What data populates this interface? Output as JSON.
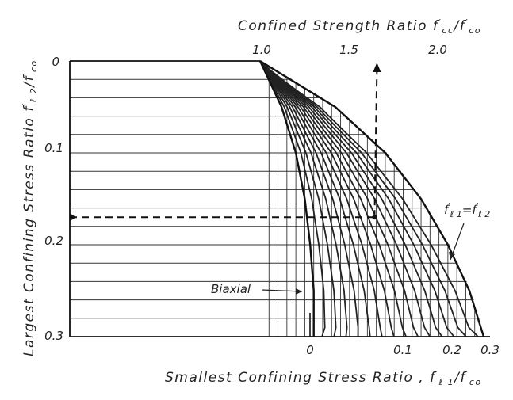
{
  "chart_data": {
    "type": "line",
    "title": "",
    "top_axis": {
      "label": "Confined Strength Ratio  f′cc / f′co",
      "label_parts": {
        "prefix": "Confined Strength Ratio  f",
        "sup1": "′",
        "sub1": "cc",
        "mid": "/f",
        "sup2": "′",
        "sub2": "co"
      },
      "ticks": [
        "1.0",
        "1.5",
        "2.0"
      ],
      "tick_values": [
        1.0,
        1.5,
        2.0
      ],
      "range": [
        1.0,
        2.25
      ]
    },
    "left_axis": {
      "label": "Largest Confining Stress Ratio  f′l2 / f′co",
      "label_parts": {
        "prefix": "Largest Confining Stress Ratio  f",
        "sup1": "′",
        "sub1": "ℓ 2",
        "mid": "/f",
        "sup2": "′",
        "sub2": "co"
      },
      "ticks": [
        "0",
        "0.1",
        "0.2",
        "0.3"
      ],
      "tick_values": [
        0,
        0.1,
        0.2,
        0.3
      ],
      "range": [
        0,
        0.3
      ],
      "inverted": true
    },
    "bottom_axis": {
      "label": "Smallest Confining Stress Ratio ,  f′l1 / f′co",
      "label_parts": {
        "prefix": "Smallest Confining Stress Ratio ,  f",
        "sup1": "′",
        "sub1": "ℓ 1",
        "mid": "/f",
        "sup2": "′",
        "sub2": "co"
      },
      "ticks": [
        "0",
        "0.1",
        "0.2",
        "0.3"
      ],
      "tick_values": [
        0,
        0.1,
        0.2,
        0.3
      ],
      "range": [
        0,
        0.3
      ]
    },
    "grid": true,
    "horizontal_grid_step": 0.02,
    "vertical_grid_step": 0.1,
    "series": [
      {
        "name": "Biaxial",
        "points": [
          [
            1.0,
            0
          ],
          [
            1.12,
            0.05
          ],
          [
            1.2,
            0.1
          ],
          [
            1.25,
            0.15
          ],
          [
            1.28,
            0.2
          ],
          [
            1.3,
            0.25
          ],
          [
            1.3,
            0.3
          ]
        ]
      },
      {
        "name": "f′l1 = f′l2",
        "points": [
          [
            1.0,
            0
          ],
          [
            1.42,
            0.05
          ],
          [
            1.7,
            0.1
          ],
          [
            1.9,
            0.15
          ],
          [
            2.05,
            0.2
          ],
          [
            2.17,
            0.25
          ],
          [
            2.25,
            0.3
          ]
        ]
      }
    ],
    "family_curves": {
      "f_l1_values": [
        0.02,
        0.04,
        0.06,
        0.08,
        0.1,
        0.12,
        0.14,
        0.16,
        0.18,
        0.2,
        0.22,
        0.24,
        0.26,
        0.28
      ],
      "description": "Curves of constant smallest confining stress ratio, each running from the biaxial curve to the bottom axis value"
    },
    "example_path": {
      "f_l2": 0.17,
      "f_l1": 0.07,
      "f_cc_ratio": 1.64
    },
    "annotations": [
      {
        "text": "Biaxial",
        "target": "biaxial-curve"
      },
      {
        "text": "f′l1 = f′l2",
        "parts": {
          "f1": "f",
          "sup1": "′",
          "sub1": "ℓ 1",
          "eq": "=f",
          "sup2": "′",
          "sub2": "ℓ 2"
        },
        "target": "equal-confinement-curve"
      }
    ]
  }
}
